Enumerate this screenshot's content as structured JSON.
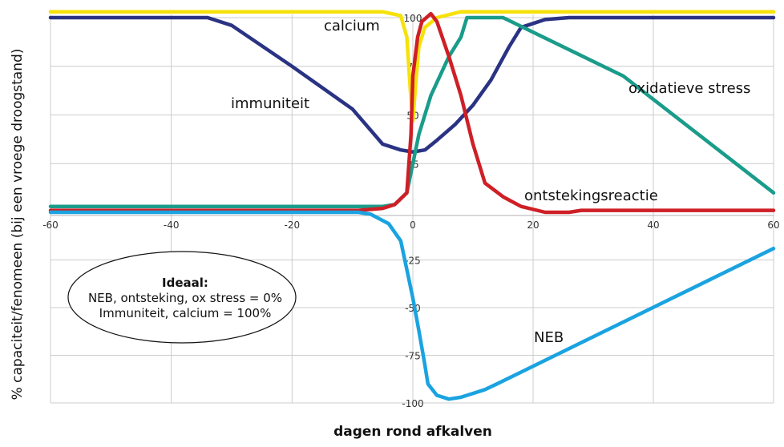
{
  "chart_data": {
    "type": "line",
    "xlabel": "dagen rond afkalven",
    "ylabel": "% capaciteit/fenomeen (bij een vroege droogstand)",
    "xlim": [
      -60,
      60
    ],
    "ylim": [
      -100,
      100
    ],
    "x_ticks": [
      "-60",
      "-40",
      "-20",
      "0",
      "20",
      "40",
      "60"
    ],
    "y_ticks": [
      "100",
      "75",
      "50",
      "25",
      "-25",
      "-50",
      "-75",
      "-100"
    ],
    "grid": true,
    "series": [
      {
        "name": "calcium",
        "color": "#f6e20a",
        "points": [
          [
            -60,
            103
          ],
          [
            -5,
            103
          ],
          [
            -2,
            101
          ],
          [
            -1,
            90
          ],
          [
            -0.4,
            62
          ],
          [
            0,
            47
          ],
          [
            0.5,
            67
          ],
          [
            1,
            85
          ],
          [
            2,
            95
          ],
          [
            4,
            100
          ],
          [
            8,
            103
          ],
          [
            60,
            103
          ]
        ]
      },
      {
        "name": "immuniteit",
        "color": "#2a3383",
        "points": [
          [
            -60,
            100
          ],
          [
            -34,
            100
          ],
          [
            -30,
            96
          ],
          [
            -20,
            75
          ],
          [
            -10,
            53
          ],
          [
            -5,
            35
          ],
          [
            -2,
            32
          ],
          [
            0,
            31
          ],
          [
            2,
            32
          ],
          [
            4,
            37
          ],
          [
            7,
            45
          ],
          [
            10,
            55
          ],
          [
            13,
            68
          ],
          [
            16,
            85
          ],
          [
            18,
            95
          ],
          [
            20,
            97
          ],
          [
            22,
            99
          ],
          [
            26,
            100
          ],
          [
            60,
            100
          ]
        ]
      },
      {
        "name": "oxidatieve stress",
        "color": "#1a9c8a",
        "points": [
          [
            -60,
            3
          ],
          [
            -5,
            3
          ],
          [
            -3,
            4
          ],
          [
            -1,
            10
          ],
          [
            0,
            25
          ],
          [
            1,
            40
          ],
          [
            3,
            60
          ],
          [
            6,
            80
          ],
          [
            8,
            90
          ],
          [
            9,
            100
          ],
          [
            15,
            100
          ],
          [
            35,
            70
          ],
          [
            60,
            10
          ]
        ]
      },
      {
        "name": "ontstekingsreactie",
        "color": "#cf1f26",
        "points": [
          [
            -60,
            1
          ],
          [
            -9,
            1
          ],
          [
            -5,
            2
          ],
          [
            -3,
            4
          ],
          [
            -1,
            10
          ],
          [
            -0.3,
            40
          ],
          [
            0,
            70
          ],
          [
            0.8,
            90
          ],
          [
            1.5,
            98
          ],
          [
            3,
            102
          ],
          [
            4,
            98
          ],
          [
            6,
            80
          ],
          [
            8,
            60
          ],
          [
            10,
            35
          ],
          [
            12,
            15
          ],
          [
            15,
            8
          ],
          [
            18,
            3
          ],
          [
            22,
            0
          ],
          [
            26,
            0
          ],
          [
            28,
            1
          ],
          [
            60,
            1
          ]
        ]
      },
      {
        "name": "NEB",
        "color": "#1aa3e0",
        "points": [
          [
            -60,
            0
          ],
          [
            -9,
            0
          ],
          [
            -7,
            -1
          ],
          [
            -4,
            -6
          ],
          [
            -2,
            -15
          ],
          [
            -1,
            -30
          ],
          [
            0,
            -45
          ],
          [
            1,
            -62
          ],
          [
            2,
            -80
          ],
          [
            2.5,
            -90
          ],
          [
            4,
            -96
          ],
          [
            6,
            -98
          ],
          [
            8,
            -97
          ],
          [
            10,
            -95
          ],
          [
            12,
            -93
          ],
          [
            14,
            -90
          ],
          [
            60,
            -19
          ]
        ]
      }
    ],
    "series_labels": {
      "calcium": "calcium",
      "immuniteit": "immuniteit",
      "oxidatieve_stress": "oxidatieve stress",
      "ontstekingsreactie": "ontstekingsreactie",
      "neb": "NEB"
    }
  },
  "note": {
    "title": "Ideaal:",
    "line1": "NEB, ontsteking, ox stress = 0%",
    "line2": "Immuniteit, calcium = 100%"
  }
}
